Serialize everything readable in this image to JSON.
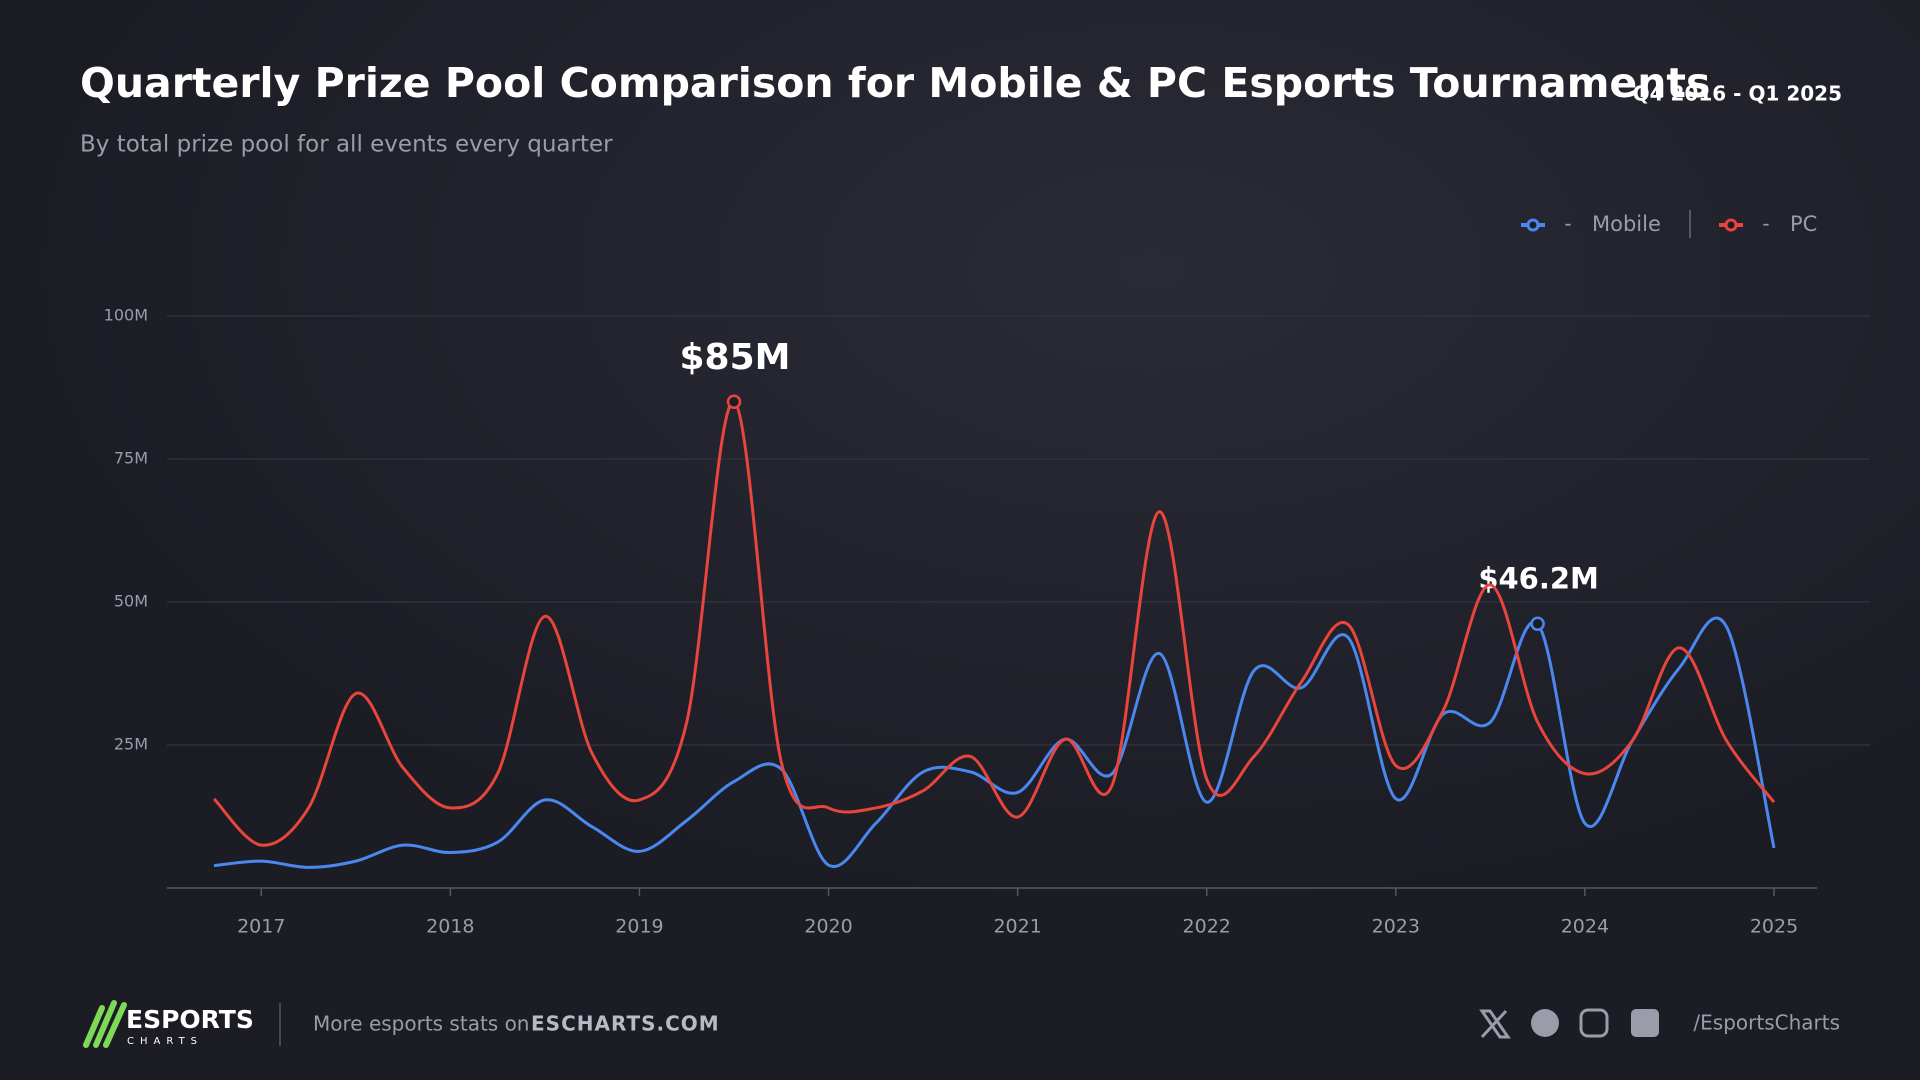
{
  "chart_data": {
    "type": "line",
    "title": "Quarterly Prize Pool Comparison for Mobile & PC Esports Tournaments",
    "subtitle": "By total prize pool for all events every quarter",
    "period": "Q4 2016 - Q1 2025",
    "categories": [
      null,
      "2017",
      null,
      null,
      null,
      "2018",
      null,
      null,
      null,
      "2019",
      null,
      null,
      null,
      "2020",
      null,
      null,
      null,
      "2021",
      null,
      null,
      null,
      "2022",
      null,
      null,
      null,
      "2023",
      null,
      null,
      null,
      "2024",
      null,
      null,
      null,
      "2025"
    ],
    "series": [
      {
        "name": "Mobile",
        "color": "#4a88f0",
        "values": [
          3.9,
          4.7,
          3.6,
          4.7,
          7.5,
          6.2,
          8,
          15.4,
          10.7,
          6.4,
          11.8,
          18.6,
          20.8,
          4,
          11.3,
          20.3,
          20.3,
          16.7,
          26,
          20,
          41,
          15,
          38,
          35,
          43.7,
          15.6,
          30.4,
          29,
          46.2,
          11.3,
          25.7,
          38.5,
          45.6,
          7
        ],
        "value_labels": [
          null,
          null,
          null,
          null,
          null,
          null,
          null,
          null,
          null,
          null,
          null,
          null,
          null,
          null,
          null,
          null,
          null,
          null,
          null,
          null,
          null,
          null,
          null,
          null,
          null,
          null,
          null,
          null,
          "$46.2M",
          null,
          null,
          null,
          null,
          null
        ]
      },
      {
        "name": "PC",
        "color": "#e8453c",
        "values": [
          15.6,
          7.5,
          14,
          34,
          21,
          14,
          20,
          47.5,
          23.5,
          15.4,
          29,
          85,
          22,
          14,
          14,
          17,
          23,
          12.4,
          26,
          18,
          65.8,
          19,
          23,
          36,
          46,
          21.4,
          31,
          53,
          29,
          20,
          25.7,
          42,
          25.7,
          15
        ],
        "value_labels": [
          null,
          null,
          null,
          null,
          null,
          null,
          null,
          null,
          null,
          null,
          null,
          "$85M",
          null,
          null,
          null,
          null,
          null,
          null,
          null,
          null,
          null,
          null,
          null,
          null,
          null,
          null,
          null,
          null,
          null,
          null,
          null,
          null,
          null,
          null
        ]
      }
    ],
    "ylim": [
      0,
      100
    ],
    "yticks": [
      {
        "value": 25,
        "label": "25M"
      },
      {
        "value": 50,
        "label": "50M"
      },
      {
        "value": 75,
        "label": "75M"
      },
      {
        "value": 100,
        "label": "100M"
      }
    ],
    "grid": true
  },
  "footer": {
    "logo_top": "ESPORTS",
    "logo_bottom": "CHARTS",
    "promo": "More esports stats on",
    "site": "ESCHARTS.COM",
    "handle": "/EsportsCharts"
  }
}
